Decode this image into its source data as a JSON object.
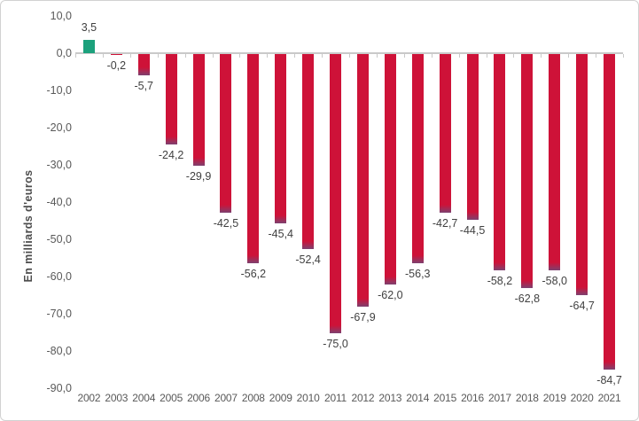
{
  "chart_data": {
    "type": "bar",
    "title": "",
    "xlabel": "",
    "ylabel": "En milliards d'euros",
    "ylim": [
      -90,
      10
    ],
    "grid": false,
    "legend": false,
    "categories": [
      "2002",
      "2003",
      "2004",
      "2005",
      "2006",
      "2007",
      "2008",
      "2009",
      "2010",
      "2011",
      "2012",
      "2013",
      "2014",
      "2015",
      "2016",
      "2017",
      "2018",
      "2019",
      "2020",
      "2021"
    ],
    "values": [
      3.5,
      -0.2,
      -5.7,
      -24.2,
      -29.9,
      -42.5,
      -56.2,
      -45.4,
      -52.4,
      -75.0,
      -67.9,
      -62.0,
      -56.3,
      -42.7,
      -44.5,
      -58.2,
      -62.8,
      -58.0,
      -64.7,
      -84.7
    ],
    "value_labels": [
      "3,5",
      "-0,2",
      "-5,7",
      "-24,2",
      "-29,9",
      "-42,5",
      "-56,2",
      "-45,4",
      "-52,4",
      "-75,0",
      "-67,9",
      "-62,0",
      "-56,3",
      "-42,7",
      "-44,5",
      "-58,2",
      "-62,8",
      "-58,0",
      "-64,7",
      "-84,7"
    ],
    "y_ticks": [
      {
        "value": 10,
        "label": "10,0"
      },
      {
        "value": 0,
        "label": "0,0"
      },
      {
        "value": -10,
        "label": "-10,0"
      },
      {
        "value": -20,
        "label": "-20,0"
      },
      {
        "value": -30,
        "label": "-30,0"
      },
      {
        "value": -40,
        "label": "-40,0"
      },
      {
        "value": -50,
        "label": "-50,0"
      },
      {
        "value": -60,
        "label": "-60,0"
      },
      {
        "value": -70,
        "label": "-70,0"
      },
      {
        "value": -80,
        "label": "-80,0"
      },
      {
        "value": -90,
        "label": "-90,0"
      }
    ],
    "colors": {
      "positive": "#1CA17C",
      "negative": "#CE1238",
      "negative_tip": "#7E4170",
      "axis_line": "#C9C9C9",
      "tick_label": "#595959",
      "value_label": "#404040",
      "background": "#FFFFFF",
      "border": "#D2D2D2"
    }
  }
}
